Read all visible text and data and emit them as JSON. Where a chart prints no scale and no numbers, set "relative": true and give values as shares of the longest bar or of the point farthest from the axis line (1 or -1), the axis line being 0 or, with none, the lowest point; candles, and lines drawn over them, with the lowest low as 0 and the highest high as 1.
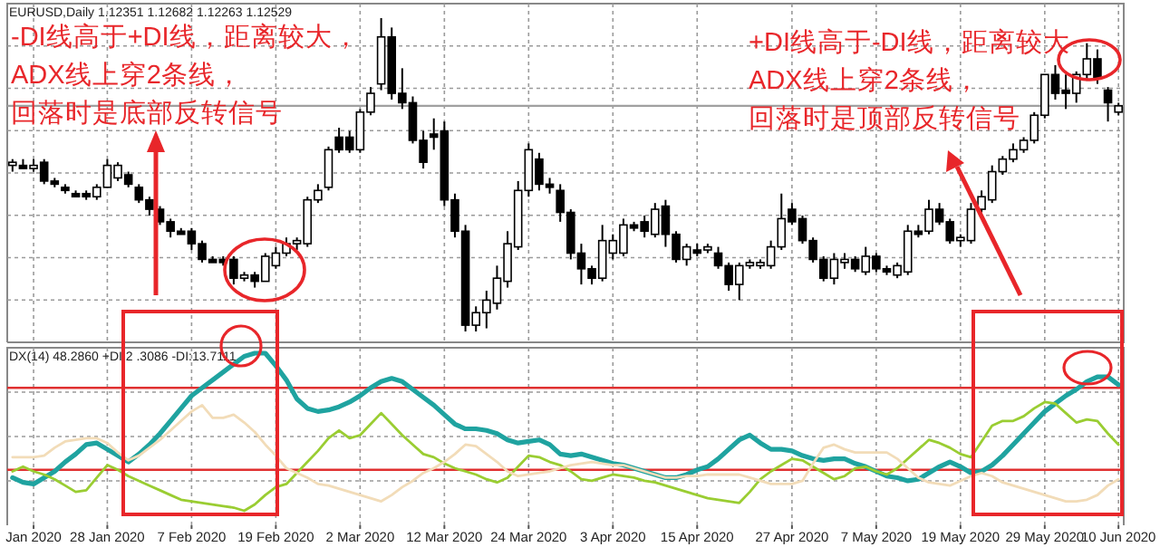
{
  "chart_data": [
    {
      "type": "candlestick",
      "title": "EURUSD,Daily 1.12351 1.12682 1.12263 1.12529",
      "relative": true,
      "grid": true,
      "categories": [
        null,
        null,
        null,
        null,
        null,
        null,
        null,
        null,
        null,
        null,
        null,
        null,
        null,
        null,
        null,
        null,
        null,
        null,
        null,
        null,
        null,
        null,
        null,
        null,
        null,
        null,
        null,
        null,
        null,
        null,
        null,
        null,
        null,
        null,
        null,
        null,
        null,
        null,
        null,
        null,
        null,
        null,
        null,
        null,
        null,
        null,
        null,
        null,
        null,
        null,
        null,
        null,
        null,
        null,
        null,
        null,
        null,
        null,
        null,
        null,
        null,
        null,
        null,
        null,
        null,
        null,
        null,
        null,
        null,
        null,
        null,
        null,
        null,
        null,
        null,
        null,
        null,
        null,
        null,
        null,
        null,
        null,
        null,
        null,
        null,
        null,
        null,
        null,
        null,
        null,
        null,
        null,
        null,
        null,
        null,
        null,
        null,
        null,
        null,
        null,
        null,
        null,
        null,
        null,
        null,
        null
      ],
      "ohlc": [
        [
          0.53,
          0.55,
          0.51,
          0.54
        ],
        [
          0.53,
          0.55,
          0.52,
          0.52
        ],
        [
          0.52,
          0.55,
          0.51,
          0.53
        ],
        [
          0.54,
          0.55,
          0.47,
          0.48
        ],
        [
          0.48,
          0.49,
          0.46,
          0.47
        ],
        [
          0.46,
          0.47,
          0.44,
          0.45
        ],
        [
          0.44,
          0.45,
          0.43,
          0.43
        ],
        [
          0.44,
          0.45,
          0.42,
          0.43
        ],
        [
          0.43,
          0.47,
          0.42,
          0.46
        ],
        [
          0.46,
          0.55,
          0.46,
          0.53
        ],
        [
          0.49,
          0.54,
          0.48,
          0.53
        ],
        [
          0.5,
          0.51,
          0.46,
          0.47
        ],
        [
          0.46,
          0.47,
          0.41,
          0.42
        ],
        [
          0.42,
          0.43,
          0.37,
          0.39
        ],
        [
          0.39,
          0.4,
          0.34,
          0.35
        ],
        [
          0.35,
          0.36,
          0.3,
          0.32
        ],
        [
          0.32,
          0.33,
          0.31,
          0.31
        ],
        [
          0.32,
          0.33,
          0.26,
          0.28
        ],
        [
          0.28,
          0.29,
          0.22,
          0.23
        ],
        [
          0.23,
          0.24,
          0.22,
          0.22
        ],
        [
          0.23,
          0.24,
          0.21,
          0.22
        ],
        [
          0.23,
          0.24,
          0.15,
          0.17
        ],
        [
          0.17,
          0.19,
          0.16,
          0.18
        ],
        [
          0.18,
          0.19,
          0.14,
          0.16
        ],
        [
          0.16,
          0.25,
          0.16,
          0.24
        ],
        [
          0.21,
          0.27,
          0.2,
          0.25
        ],
        [
          0.25,
          0.3,
          0.24,
          0.28
        ],
        [
          0.28,
          0.3,
          0.26,
          0.29
        ],
        [
          0.28,
          0.43,
          0.27,
          0.42
        ],
        [
          0.42,
          0.47,
          0.41,
          0.45
        ],
        [
          0.46,
          0.59,
          0.45,
          0.58
        ],
        [
          0.62,
          0.65,
          0.57,
          0.58
        ],
        [
          0.62,
          0.64,
          0.57,
          0.58
        ],
        [
          0.58,
          0.71,
          0.57,
          0.7
        ],
        [
          0.7,
          0.78,
          0.69,
          0.76
        ],
        [
          0.79,
          1.0,
          0.77,
          0.94
        ],
        [
          0.94,
          0.97,
          0.74,
          0.76
        ],
        [
          0.76,
          0.84,
          0.71,
          0.73
        ],
        [
          0.73,
          0.75,
          0.6,
          0.61
        ],
        [
          0.61,
          0.64,
          0.52,
          0.54
        ],
        [
          0.63,
          0.68,
          0.58,
          0.62
        ],
        [
          0.64,
          0.67,
          0.4,
          0.42
        ],
        [
          0.42,
          0.44,
          0.3,
          0.32
        ],
        [
          0.32,
          0.34,
          0.0,
          0.02
        ],
        [
          0.02,
          0.08,
          0.0,
          0.06
        ],
        [
          0.06,
          0.13,
          0.01,
          0.1
        ],
        [
          0.09,
          0.21,
          0.07,
          0.17
        ],
        [
          0.16,
          0.32,
          0.14,
          0.28
        ],
        [
          0.27,
          0.48,
          0.26,
          0.45
        ],
        [
          0.45,
          0.6,
          0.43,
          0.58
        ],
        [
          0.55,
          0.57,
          0.45,
          0.47
        ],
        [
          0.47,
          0.49,
          0.44,
          0.46
        ],
        [
          0.45,
          0.47,
          0.35,
          0.38
        ],
        [
          0.38,
          0.39,
          0.23,
          0.25
        ],
        [
          0.25,
          0.28,
          0.15,
          0.2
        ],
        [
          0.2,
          0.21,
          0.15,
          0.17
        ],
        [
          0.17,
          0.34,
          0.16,
          0.29
        ],
        [
          0.25,
          0.31,
          0.23,
          0.29
        ],
        [
          0.25,
          0.36,
          0.24,
          0.34
        ],
        [
          0.34,
          0.35,
          0.32,
          0.33
        ],
        [
          0.35,
          0.37,
          0.3,
          0.32
        ],
        [
          0.31,
          0.41,
          0.3,
          0.39
        ],
        [
          0.4,
          0.42,
          0.27,
          0.31
        ],
        [
          0.31,
          0.32,
          0.22,
          0.23
        ],
        [
          0.23,
          0.28,
          0.21,
          0.27
        ],
        [
          0.26,
          0.28,
          0.24,
          0.25
        ],
        [
          0.26,
          0.28,
          0.25,
          0.27
        ],
        [
          0.25,
          0.27,
          0.2,
          0.21
        ],
        [
          0.21,
          0.22,
          0.13,
          0.15
        ],
        [
          0.15,
          0.22,
          0.1,
          0.21
        ],
        [
          0.21,
          0.23,
          0.2,
          0.22
        ],
        [
          0.21,
          0.23,
          0.2,
          0.22
        ],
        [
          0.21,
          0.29,
          0.2,
          0.27
        ],
        [
          0.27,
          0.44,
          0.26,
          0.36
        ],
        [
          0.39,
          0.41,
          0.34,
          0.35
        ],
        [
          0.36,
          0.37,
          0.28,
          0.29
        ],
        [
          0.29,
          0.3,
          0.22,
          0.23
        ],
        [
          0.23,
          0.24,
          0.16,
          0.17
        ],
        [
          0.17,
          0.25,
          0.15,
          0.23
        ],
        [
          0.22,
          0.25,
          0.2,
          0.23
        ],
        [
          0.23,
          0.24,
          0.19,
          0.2
        ],
        [
          0.19,
          0.27,
          0.18,
          0.24
        ],
        [
          0.24,
          0.25,
          0.19,
          0.2
        ],
        [
          0.2,
          0.21,
          0.18,
          0.19
        ],
        [
          0.18,
          0.22,
          0.17,
          0.21
        ],
        [
          0.19,
          0.34,
          0.18,
          0.32
        ],
        [
          0.32,
          0.34,
          0.3,
          0.31
        ],
        [
          0.32,
          0.42,
          0.31,
          0.39
        ],
        [
          0.39,
          0.41,
          0.34,
          0.35
        ],
        [
          0.35,
          0.36,
          0.28,
          0.29
        ],
        [
          0.29,
          0.31,
          0.27,
          0.3
        ],
        [
          0.29,
          0.41,
          0.28,
          0.39
        ],
        [
          0.39,
          0.45,
          0.38,
          0.43
        ],
        [
          0.42,
          0.53,
          0.41,
          0.51
        ],
        [
          0.51,
          0.56,
          0.5,
          0.55
        ],
        [
          0.55,
          0.6,
          0.54,
          0.58
        ],
        [
          0.58,
          0.62,
          0.57,
          0.61
        ],
        [
          0.61,
          0.7,
          0.6,
          0.69
        ],
        [
          0.69,
          0.82,
          0.68,
          0.82
        ],
        [
          0.82,
          0.85,
          0.74,
          0.76
        ],
        [
          0.77,
          0.82,
          0.71,
          0.76
        ],
        [
          0.76,
          0.83,
          0.73,
          0.82
        ],
        [
          0.82,
          0.92,
          0.8,
          0.87
        ],
        [
          0.87,
          0.9,
          0.79,
          0.81
        ],
        [
          0.77,
          0.78,
          0.67,
          0.73
        ],
        [
          0.7,
          0.73,
          0.69,
          0.72
        ]
      ],
      "ref_lines": [
        {
          "axis": "y",
          "value": 0.72,
          "color": "#a0a0a0"
        }
      ],
      "annotations": [
        "-DI线高于+DI线，距离较大，",
        "ADX线上穿2条线，",
        "回落时是底部反转信号",
        "+DI线高于-DI线，距离较大",
        "ADX线上穿2条线，",
        "回落时是顶部反转信号"
      ]
    },
    {
      "type": "line",
      "title": "DX(14) 48.2860 +DI:2 .3086 -DI:13.7111",
      "relative": true,
      "grid": true,
      "categories": [
        null,
        null,
        "Jan 2020",
        null,
        null,
        null,
        null,
        null,
        null,
        "28 Jan 2020",
        null,
        null,
        null,
        null,
        null,
        null,
        null,
        "7 Feb 2020",
        null,
        null,
        null,
        null,
        null,
        null,
        null,
        "19 Feb 2020",
        null,
        null,
        null,
        null,
        null,
        null,
        null,
        "2 Mar 2020",
        null,
        null,
        null,
        null,
        null,
        null,
        null,
        "12 Mar 2020",
        null,
        null,
        null,
        null,
        null,
        null,
        null,
        "24 Mar 2020",
        null,
        null,
        null,
        null,
        null,
        null,
        null,
        "3 Apr 2020",
        null,
        null,
        null,
        null,
        null,
        null,
        null,
        "15 Apr 2020",
        null,
        null,
        null,
        null,
        null,
        null,
        null,
        null,
        "27 Apr 2020",
        null,
        null,
        null,
        null,
        null,
        null,
        null,
        "7 May 2020",
        null,
        null,
        null,
        null,
        null,
        null,
        null,
        "19 May 2020",
        null,
        null,
        null,
        null,
        null,
        null,
        null,
        "29 May 2020",
        null,
        null,
        null,
        null,
        null,
        null,
        "10 Jun 2020"
      ],
      "ref_lines": [
        {
          "axis": "y",
          "value": 0.78,
          "color": "#e03030"
        },
        {
          "axis": "y",
          "value": 0.26,
          "color": "#e03030"
        }
      ],
      "series": [
        {
          "color": "#1fa3a0",
          "values": [
            0.21,
            0.18,
            0.17,
            0.21,
            0.25,
            0.31,
            0.36,
            0.42,
            0.43,
            0.39,
            0.35,
            0.31,
            0.36,
            0.42,
            0.49,
            0.57,
            0.65,
            0.73,
            0.78,
            0.83,
            0.88,
            0.93,
            0.98,
            1.0,
            1.0,
            0.92,
            0.83,
            0.71,
            0.65,
            0.63,
            0.64,
            0.66,
            0.69,
            0.73,
            0.78,
            0.82,
            0.84,
            0.82,
            0.77,
            0.72,
            0.67,
            0.61,
            0.55,
            0.52,
            0.52,
            0.51,
            0.49,
            0.45,
            0.43,
            0.44,
            0.45,
            0.42,
            0.36,
            0.35,
            0.36,
            0.34,
            0.32,
            0.3,
            0.29,
            0.27,
            0.25,
            0.23,
            0.21,
            0.21,
            0.23,
            0.26,
            0.28,
            0.33,
            0.39,
            0.45,
            0.48,
            0.43,
            0.39,
            0.39,
            0.38,
            0.35,
            0.33,
            0.32,
            0.33,
            0.33,
            0.3,
            0.28,
            0.25,
            0.22,
            0.21,
            0.19,
            0.2,
            0.24,
            0.28,
            0.31,
            0.28,
            0.24,
            0.25,
            0.29,
            0.35,
            0.42,
            0.49,
            0.56,
            0.63,
            0.68,
            0.73,
            0.77,
            0.82,
            0.85,
            0.85,
            0.8
          ]
        },
        {
          "color": "#9acd32",
          "values": [
            0.25,
            0.28,
            0.25,
            0.23,
            0.2,
            0.16,
            0.12,
            0.13,
            0.21,
            0.29,
            0.26,
            0.22,
            0.19,
            0.16,
            0.13,
            0.1,
            0.07,
            0.06,
            0.05,
            0.04,
            0.03,
            0.02,
            0,
            0.04,
            0.1,
            0.15,
            0.17,
            0.24,
            0.31,
            0.38,
            0.46,
            0.51,
            0.46,
            0.48,
            0.55,
            0.62,
            0.55,
            0.48,
            0.42,
            0.36,
            0.34,
            0.3,
            0.27,
            0.25,
            0.23,
            0.2,
            0.18,
            0.21,
            0.28,
            0.35,
            0.34,
            0.31,
            0.29,
            0.25,
            0.2,
            0.19,
            0.21,
            0.23,
            0.22,
            0.21,
            0.19,
            0.18,
            0.16,
            0.14,
            0.12,
            0.1,
            0.08,
            0.07,
            0.06,
            0.05,
            0.12,
            0.2,
            0.25,
            0.29,
            0.33,
            0.32,
            0.28,
            0.24,
            0.2,
            0.22,
            0.27,
            0.28,
            0.25,
            0.23,
            0.27,
            0.33,
            0.39,
            0.45,
            0.43,
            0.4,
            0.36,
            0.34,
            0.44,
            0.54,
            0.57,
            0.57,
            0.6,
            0.65,
            0.69,
            0.68,
            0.62,
            0.56,
            0.58,
            0.57,
            0.49,
            0.42
          ]
        },
        {
          "color": "#f2dcb8",
          "values": [
            0.34,
            0.34,
            0.34,
            0.35,
            0.4,
            0.44,
            0.45,
            0.46,
            0.46,
            0.43,
            0.37,
            0.32,
            0.35,
            0.4,
            0.45,
            0.51,
            0.57,
            0.63,
            0.67,
            0.59,
            0.59,
            0.61,
            0.56,
            0.5,
            0.42,
            0.35,
            0.27,
            0.24,
            0.21,
            0.17,
            0.16,
            0.14,
            0.12,
            0.1,
            0.08,
            0.06,
            0.1,
            0.15,
            0.19,
            0.24,
            0.27,
            0.31,
            0.36,
            0.42,
            0.41,
            0.36,
            0.31,
            0.25,
            0.22,
            0.23,
            0.24,
            0.25,
            0.27,
            0.29,
            0.3,
            0.31,
            0.3,
            0.29,
            0.29,
            0.27,
            0.25,
            0.23,
            0.21,
            0.21,
            0.22,
            0.22,
            0.23,
            0.23,
            0.23,
            0.23,
            0.21,
            0.19,
            0.17,
            0.17,
            0.17,
            0.19,
            0.3,
            0.4,
            0.42,
            0.39,
            0.37,
            0.37,
            0.37,
            0.37,
            0.33,
            0.27,
            0.21,
            0.18,
            0.17,
            0.16,
            0.19,
            0.22,
            0.24,
            0.22,
            0.18,
            0.16,
            0.14,
            0.12,
            0.1,
            0.08,
            0.06,
            0.06,
            0.07,
            0.1,
            0.16,
            0.2
          ]
        }
      ]
    }
  ]
}
